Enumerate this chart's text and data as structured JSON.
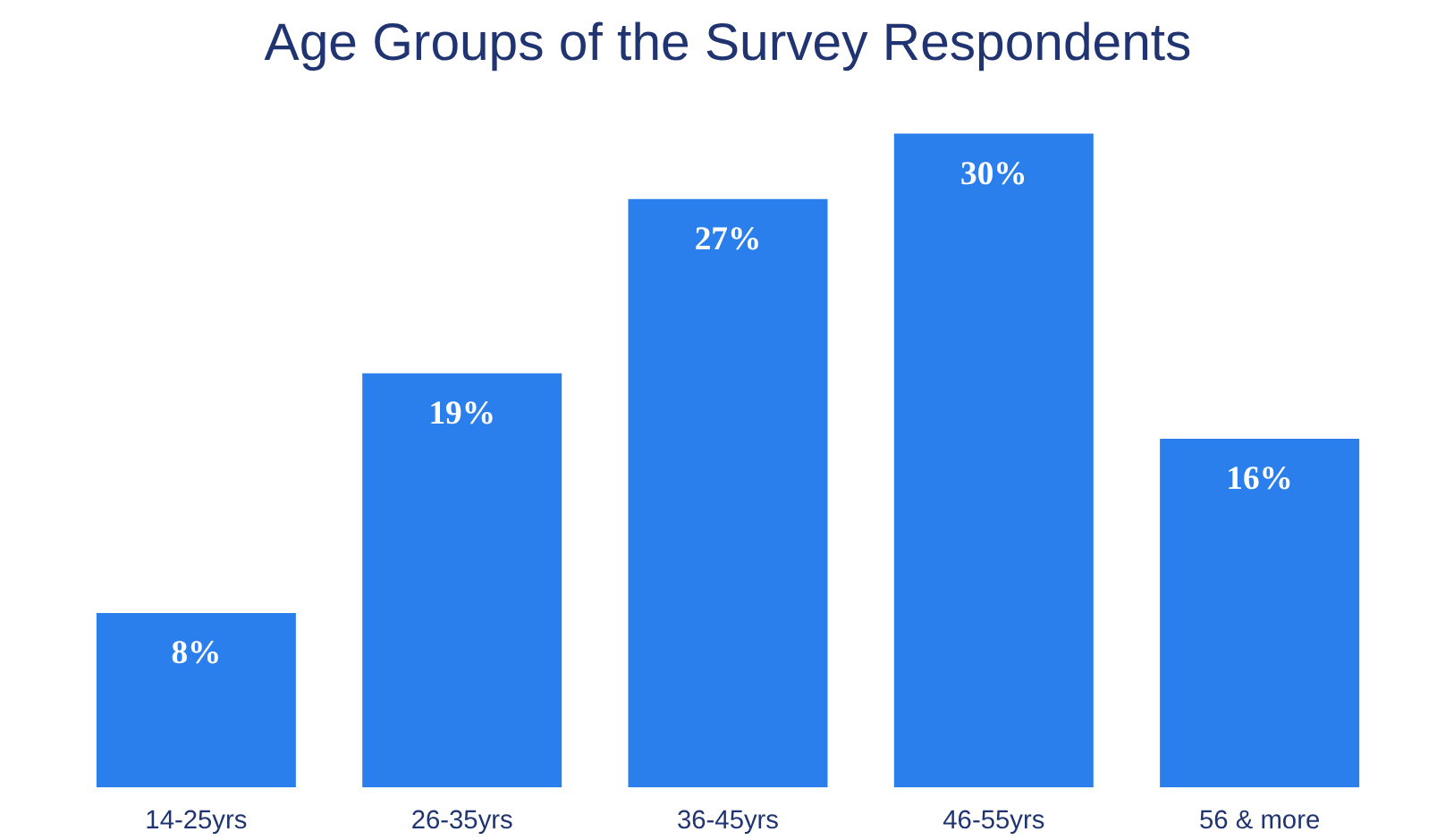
{
  "chart_data": {
    "type": "bar",
    "title": "Age Groups of the Survey Respondents",
    "categories": [
      "14-25yrs",
      "26-35yrs",
      "36-45yrs",
      "46-55yrs",
      "56 & more"
    ],
    "values": [
      8,
      19,
      27,
      30,
      16
    ],
    "value_labels": [
      "8%",
      "19%",
      "27%",
      "30%",
      "16%"
    ],
    "color": "#2a7fec",
    "grid": false
  }
}
